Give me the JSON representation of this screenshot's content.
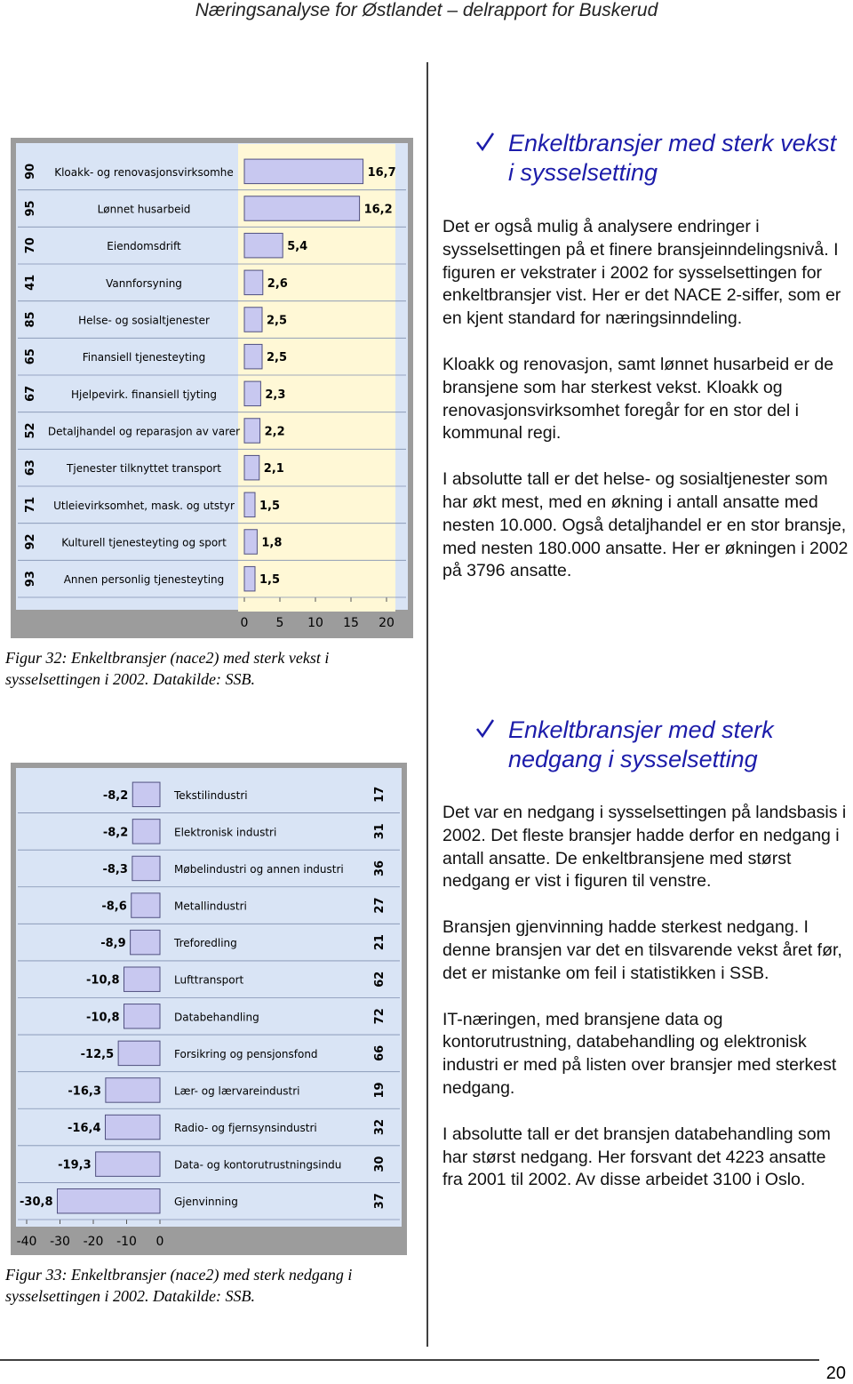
{
  "header": {
    "title": "Næringsanalyse for Østlandet – delrapport for Buskerud"
  },
  "chart_data": [
    {
      "type": "bar",
      "codes": [
        "90",
        "95",
        "70",
        "41",
        "85",
        "65",
        "67",
        "52",
        "63",
        "71",
        "92",
        "93"
      ],
      "categories": [
        "Kloakk- og renovasjonsvirksomhe",
        "Lønnet husarbeid",
        "Eiendomsdrift",
        "Vannforsyning",
        "Helse- og sosialtjenester",
        "Finansiell tjenesteyting",
        "Hjelpevirk. finansiell tjyting",
        "Detaljhandel og reparasjon av varer",
        "Tjenester tilknyttet transport",
        "Utleievirksomhet, mask. og utstyr",
        "Kulturell tjenesteyting og sport",
        "Annen personlig tjenesteyting"
      ],
      "values": [
        16.7,
        16.2,
        5.4,
        2.6,
        2.5,
        2.5,
        2.3,
        2.2,
        2.1,
        1.5,
        1.8,
        1.5
      ],
      "value_labels": [
        "16,7",
        "16,2",
        "5,4",
        "2,6",
        "2,5",
        "2,5",
        "2,3",
        "2,2",
        "2,1",
        "1,5",
        "1,8",
        "1,5"
      ],
      "color": "#c8c8f0",
      "xlim": [
        0,
        20
      ],
      "xticks": [
        0,
        5,
        10,
        15,
        20
      ]
    },
    {
      "type": "bar",
      "codes": [
        "17",
        "31",
        "36",
        "27",
        "21",
        "62",
        "72",
        "66",
        "19",
        "32",
        "30",
        "37"
      ],
      "categories": [
        "Tekstilindustri",
        "Elektronisk industri",
        "Møbelindustri og annen industri",
        "Metallindustri",
        "Treforedling",
        "Lufttransport",
        "Databehandling",
        "Forsikring og pensjonsfond",
        "Lær- og lærvareindustri",
        "Radio- og fjernsynsindustri",
        "Data- og kontorutrustningsindu",
        "Gjenvinning"
      ],
      "values": [
        -8.2,
        -8.2,
        -8.3,
        -8.6,
        -8.9,
        -10.8,
        -10.8,
        -12.5,
        -16.3,
        -16.4,
        -19.3,
        -30.8
      ],
      "value_labels": [
        "-8,2",
        "-8,2",
        "-8,3",
        "-8,6",
        "-8,9",
        "-10,8",
        "-10,8",
        "-12,5",
        "-16,3",
        "-16,4",
        "-19,3",
        "-30,8"
      ],
      "color": "#c8c8f0",
      "xlim": [
        -40,
        0
      ],
      "xticks": [
        -40,
        -30,
        -20,
        -10,
        0
      ]
    }
  ],
  "captions": [
    "Figur 32: Enkeltbransjer (nace2) med sterk  vekst i sysselsettingen i 2002. Datakilde:  SSB.",
    "Figur 33: Enkeltbransjer (nace2) med sterk nedgang i sysselsettingen i 2002.  Datakilde:  SSB."
  ],
  "sections": [
    {
      "heading": "Enkeltbransjer med sterk vekst i sysselsetting",
      "paragraphs": [
        "Det er også mulig å analysere endringer i sysselsettingen på et finere bransjeinndelingsnivå. I figuren er vekstrater i 2002 for sysselsettingen for enkeltbransjer vist. Her er det NACE 2-siffer, som er en kjent standard for næringsinndeling.",
        "Kloakk og renovasjon, samt lønnet husarbeid er de bransjene som har sterkest vekst. Kloakk og renovasjonsvirksomhet foregår for en stor del i kommunal regi.",
        "I absolutte tall er det helse- og sosialtjenester som har økt mest, med en økning i antall ansatte med nesten 10.000. Også detaljhandel er en stor bransje, med nesten 180.000 ansatte. Her er økningen i 2002 på 3796 ansatte."
      ]
    },
    {
      "heading": "Enkeltbransjer med sterk nedgang i sysselsetting",
      "paragraphs": [
        "Det var en nedgang i sysselsettingen på landsbasis i 2002. Det fleste bransjer hadde derfor en nedgang i antall ansatte. De enkeltbransjene med størst nedgang er vist i figuren til venstre.",
        "Bransjen gjenvinning hadde sterkest nedgang. I denne bransjen var det en tilsvarende vekst året før, det er mistanke om feil i statistikken i SSB.",
        "IT-næringen, med bransjene data og kontorutrustning, databehandling og elektronisk industri er med på listen over bransjer med sterkest nedgang.",
        "I absolutte tall er det bransjen databehandling som har størst nedgang. Her forsvant det 4223 ansatte fra 2001 til 2002.  Av disse arbeidet 3100 i Oslo."
      ]
    }
  ],
  "page_number": "20"
}
